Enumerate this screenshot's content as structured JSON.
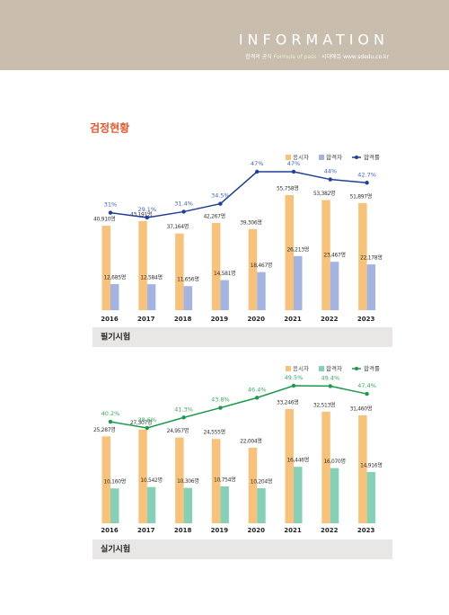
{
  "header": {
    "title": "INFORMATION",
    "tagline": "합격의 공식",
    "tagline_en": "Formula of pass",
    "brand": "시대에듀",
    "url": "www.sdedu.co.kr"
  },
  "heading": "검정현황",
  "chart_data": [
    {
      "type": "bar",
      "title": "필기시험",
      "categories": [
        "2016",
        "2017",
        "2018",
        "2019",
        "2020",
        "2021",
        "2022",
        "2023"
      ],
      "series": [
        {
          "name": "응시자",
          "color": "#f8c27b",
          "values": [
            40910,
            43191,
            37164,
            42267,
            39306,
            55758,
            53382,
            51897
          ],
          "value_labels": [
            "40,910명",
            "43,191명",
            "37,164명",
            "42,267명",
            "39,306명",
            "55,758명",
            "53,382명",
            "51,897명"
          ]
        },
        {
          "name": "합격자",
          "color": "#a3b4e2",
          "values": [
            12685,
            12584,
            11656,
            14581,
            18467,
            26213,
            23467,
            22178
          ],
          "value_labels": [
            "12,685명",
            "12,584명",
            "11,656명",
            "14,581명",
            "18,467명",
            "26,213명",
            "23,467명",
            "22,178명"
          ]
        },
        {
          "name": "합격률",
          "type": "line",
          "color": "#1f3f99",
          "label_color": "#3c63c6",
          "values": [
            31,
            29.1,
            31.4,
            34.5,
            47,
            47,
            44,
            42.7
          ],
          "value_labels": [
            "31%",
            "29.1%",
            "31.4%",
            "34.5%",
            "47%",
            "47%",
            "44%",
            "42.7%"
          ]
        }
      ]
    },
    {
      "type": "bar",
      "title": "실기시험",
      "categories": [
        "2016",
        "2017",
        "2018",
        "2019",
        "2020",
        "2021",
        "2022",
        "2023"
      ],
      "series": [
        {
          "name": "응시자",
          "color": "#f8c27b",
          "values": [
            25287,
            27307,
            24957,
            24555,
            22004,
            33246,
            32513,
            31460
          ],
          "value_labels": [
            "25,287명",
            "27,307명",
            "24,957명",
            "24,555명",
            "22,004명",
            "33,246명",
            "32,513명",
            "31,460명"
          ]
        },
        {
          "name": "합격자",
          "color": "#86d0b7",
          "values": [
            10160,
            10542,
            10306,
            10754,
            10204,
            16446,
            16070,
            14916
          ],
          "value_labels": [
            "10,160명",
            "10,542명",
            "10,306명",
            "10,754명",
            "10,204명",
            "16,446명",
            "16,070명",
            "14,916명"
          ]
        },
        {
          "name": "합격률",
          "type": "line",
          "color": "#1a9a4a",
          "label_color": "#3aa865",
          "values": [
            40.2,
            38.6,
            41.3,
            43.8,
            46.4,
            49.5,
            49.4,
            47.4
          ],
          "value_labels": [
            "40.2%",
            "38.6%",
            "41.3%",
            "43.8%",
            "46.4%",
            "49.5%",
            "49.4%",
            "47.4%"
          ]
        }
      ]
    }
  ]
}
